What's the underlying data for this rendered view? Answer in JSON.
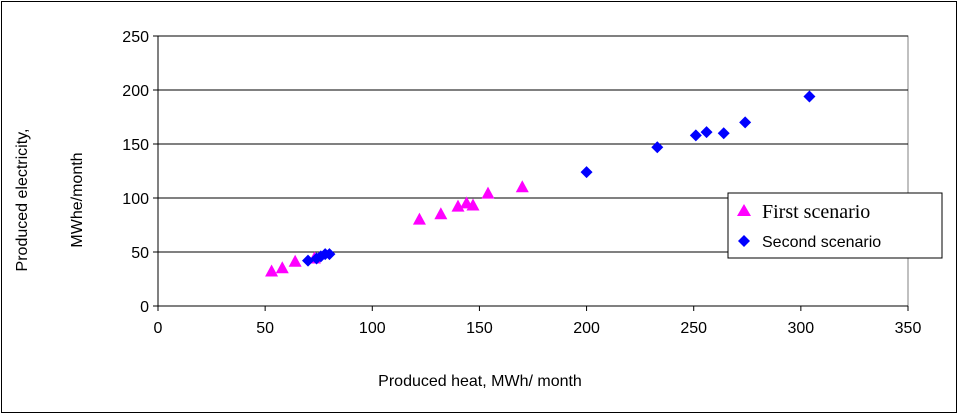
{
  "chart_data": {
    "type": "scatter",
    "xlabel": "Produced heat, MWh/ month",
    "ylabel": [
      "Produced electricity,",
      "MWhe/month"
    ],
    "xlim": [
      0,
      350
    ],
    "ylim": [
      0,
      250
    ],
    "xticks": [
      0,
      50,
      100,
      150,
      200,
      250,
      300,
      350
    ],
    "yticks": [
      0,
      50,
      100,
      150,
      200,
      250
    ],
    "grid": "horizontal",
    "legend_position": "right",
    "series": [
      {
        "name": "First scenario",
        "marker": "triangle",
        "color": "#ff00ff",
        "points": [
          [
            53,
            32
          ],
          [
            58,
            35
          ],
          [
            64,
            41
          ],
          [
            73,
            44
          ],
          [
            122,
            80
          ],
          [
            132,
            85
          ],
          [
            140,
            92
          ],
          [
            144,
            95
          ],
          [
            147,
            93
          ],
          [
            154,
            104
          ],
          [
            170,
            110
          ]
        ]
      },
      {
        "name": "Second  scenario",
        "marker": "diamond",
        "color": "#0000ff",
        "points": [
          [
            70,
            42
          ],
          [
            74,
            44
          ],
          [
            76,
            46
          ],
          [
            78,
            48
          ],
          [
            80,
            48
          ],
          [
            200,
            124
          ],
          [
            233,
            147
          ],
          [
            251,
            158
          ],
          [
            256,
            161
          ],
          [
            264,
            160
          ],
          [
            274,
            170
          ],
          [
            304,
            194
          ]
        ]
      }
    ]
  }
}
